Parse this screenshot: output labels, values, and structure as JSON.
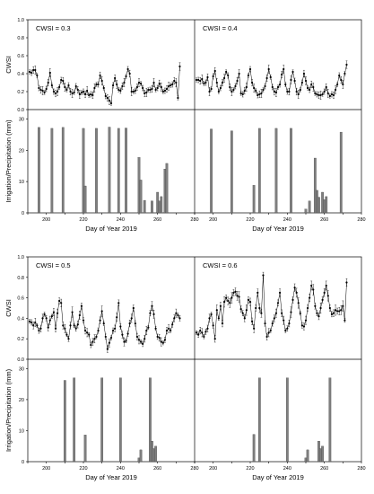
{
  "chart_data": [
    {
      "type": "line",
      "panel_label": "CWSI = 0.3",
      "ylabel": "CWSI",
      "ylim": [
        0,
        1.0
      ],
      "yticks": [
        0,
        0.2,
        0.4,
        0.6,
        0.8,
        1.0
      ],
      "xlim": [
        190,
        280
      ],
      "series": [
        {
          "x": [
            191,
            192,
            193,
            194,
            195,
            196,
            197,
            198,
            199,
            200,
            201,
            202,
            203,
            204,
            205,
            206,
            207,
            208,
            209,
            210,
            211,
            212,
            213,
            214,
            215,
            216,
            217,
            218,
            219,
            220,
            221,
            222,
            223,
            224,
            225,
            226,
            227,
            228,
            229,
            230,
            231,
            232,
            233,
            234,
            235,
            236,
            237,
            238,
            239,
            240,
            241,
            242,
            243,
            244,
            245,
            246,
            247,
            248,
            249,
            250,
            251,
            252,
            253,
            254,
            255,
            256,
            257,
            258,
            259,
            260,
            261,
            262,
            263,
            264,
            265,
            266,
            267,
            268,
            269,
            270,
            271,
            272
          ],
          "y": [
            0.42,
            0.41,
            0.44,
            0.44,
            0.38,
            0.24,
            0.22,
            0.21,
            0.19,
            0.23,
            0.3,
            0.41,
            0.27,
            0.2,
            0.18,
            0.2,
            0.25,
            0.33,
            0.32,
            0.25,
            0.22,
            0.27,
            0.2,
            0.18,
            0.19,
            0.26,
            0.22,
            0.17,
            0.19,
            0.2,
            0.17,
            0.21,
            0.16,
            0.17,
            0.16,
            0.24,
            0.28,
            0.28,
            0.38,
            0.32,
            0.24,
            0.15,
            0.13,
            0.1,
            0.07,
            0.27,
            0.35,
            0.28,
            0.22,
            0.21,
            0.26,
            0.3,
            0.37,
            0.45,
            0.4,
            0.2,
            0.2,
            0.21,
            0.25,
            0.3,
            0.29,
            0.24,
            0.18,
            0.19,
            0.22,
            0.22,
            0.23,
            0.3,
            0.22,
            0.24,
            0.29,
            0.25,
            0.2,
            0.21,
            0.23,
            0.26,
            0.27,
            0.28,
            0.32,
            0.3,
            0.13,
            0.48
          ]
        }
      ]
    },
    {
      "type": "line",
      "panel_label": "CWSI = 0.4",
      "ylim": [
        0,
        1.0
      ],
      "xlim": [
        190,
        280
      ],
      "series": [
        {
          "x": [
            191,
            192,
            193,
            194,
            195,
            196,
            197,
            198,
            199,
            200,
            201,
            202,
            203,
            204,
            205,
            206,
            207,
            208,
            209,
            210,
            211,
            212,
            213,
            214,
            215,
            216,
            217,
            218,
            219,
            220,
            221,
            222,
            223,
            224,
            225,
            226,
            227,
            228,
            229,
            230,
            231,
            232,
            233,
            234,
            235,
            236,
            237,
            238,
            239,
            240,
            241,
            242,
            243,
            244,
            245,
            246,
            247,
            248,
            249,
            250,
            251,
            252,
            253,
            254,
            255,
            256,
            257,
            258,
            259,
            260,
            261,
            262,
            263,
            264,
            265,
            266,
            267,
            268,
            269,
            270,
            271,
            272
          ],
          "y": [
            0.33,
            0.33,
            0.32,
            0.34,
            0.29,
            0.3,
            0.36,
            0.2,
            0.23,
            0.37,
            0.43,
            0.3,
            0.2,
            0.24,
            0.3,
            0.35,
            0.42,
            0.38,
            0.25,
            0.2,
            0.22,
            0.26,
            0.32,
            0.4,
            0.18,
            0.17,
            0.21,
            0.25,
            0.38,
            0.45,
            0.3,
            0.24,
            0.21,
            0.16,
            0.17,
            0.18,
            0.22,
            0.26,
            0.35,
            0.45,
            0.36,
            0.25,
            0.2,
            0.19,
            0.25,
            0.28,
            0.39,
            0.45,
            0.28,
            0.2,
            0.2,
            0.33,
            0.42,
            0.32,
            0.2,
            0.17,
            0.22,
            0.3,
            0.4,
            0.32,
            0.24,
            0.22,
            0.28,
            0.25,
            0.18,
            0.17,
            0.16,
            0.16,
            0.17,
            0.2,
            0.25,
            0.18,
            0.15,
            0.17,
            0.16,
            0.22,
            0.28,
            0.38,
            0.33,
            0.28,
            0.4,
            0.5
          ]
        }
      ]
    },
    {
      "type": "line",
      "panel_label": "CWSI = 0.5",
      "ylabel": "CWSI",
      "ylim": [
        0,
        1.0
      ],
      "yticks": [
        0,
        0.2,
        0.4,
        0.6,
        0.8,
        1.0
      ],
      "xlim": [
        190,
        280
      ],
      "series": [
        {
          "x": [
            191,
            192,
            193,
            194,
            195,
            196,
            197,
            198,
            199,
            200,
            201,
            202,
            203,
            204,
            205,
            206,
            207,
            208,
            209,
            210,
            211,
            212,
            213,
            214,
            215,
            216,
            217,
            218,
            219,
            220,
            221,
            222,
            223,
            224,
            225,
            226,
            227,
            228,
            229,
            230,
            231,
            232,
            233,
            234,
            235,
            236,
            237,
            238,
            239,
            240,
            241,
            242,
            243,
            244,
            245,
            246,
            247,
            248,
            249,
            250,
            251,
            252,
            253,
            254,
            255,
            256,
            257,
            258,
            259,
            260,
            261,
            262,
            263,
            264,
            265,
            266,
            267,
            268,
            269,
            270,
            271,
            272
          ],
          "y": [
            0.37,
            0.36,
            0.33,
            0.36,
            0.33,
            0.28,
            0.3,
            0.4,
            0.44,
            0.4,
            0.31,
            0.38,
            0.42,
            0.46,
            0.3,
            0.45,
            0.57,
            0.55,
            0.33,
            0.3,
            0.24,
            0.2,
            0.33,
            0.46,
            0.33,
            0.3,
            0.34,
            0.43,
            0.52,
            0.38,
            0.28,
            0.26,
            0.24,
            0.14,
            0.17,
            0.2,
            0.22,
            0.28,
            0.38,
            0.47,
            0.35,
            0.22,
            0.1,
            0.16,
            0.21,
            0.28,
            0.3,
            0.41,
            0.55,
            0.32,
            0.24,
            0.17,
            0.18,
            0.25,
            0.35,
            0.4,
            0.5,
            0.35,
            0.22,
            0.19,
            0.17,
            0.15,
            0.2,
            0.28,
            0.31,
            0.45,
            0.52,
            0.44,
            0.3,
            0.22,
            0.21,
            0.17,
            0.16,
            0.19,
            0.28,
            0.3,
            0.28,
            0.34,
            0.4,
            0.45,
            0.43,
            0.4
          ]
        }
      ]
    },
    {
      "type": "line",
      "panel_label": "CWSI = 0.6",
      "ylim": [
        0,
        1.0
      ],
      "xlim": [
        190,
        280
      ],
      "series": [
        {
          "x": [
            191,
            192,
            193,
            194,
            195,
            196,
            197,
            198,
            199,
            200,
            201,
            202,
            203,
            204,
            205,
            206,
            207,
            208,
            209,
            210,
            211,
            212,
            213,
            214,
            215,
            216,
            217,
            218,
            219,
            220,
            221,
            222,
            223,
            224,
            225,
            226,
            227,
            228,
            229,
            230,
            231,
            232,
            233,
            234,
            235,
            236,
            237,
            238,
            239,
            240,
            241,
            242,
            243,
            244,
            245,
            246,
            247,
            248,
            249,
            250,
            251,
            252,
            253,
            254,
            255,
            256,
            257,
            258,
            259,
            260,
            261,
            262,
            263,
            264,
            265,
            266,
            267,
            268,
            269,
            270,
            271,
            272
          ],
          "y": [
            0.26,
            0.24,
            0.28,
            0.26,
            0.22,
            0.27,
            0.3,
            0.4,
            0.44,
            0.33,
            0.2,
            0.48,
            0.4,
            0.52,
            0.35,
            0.56,
            0.6,
            0.57,
            0.55,
            0.6,
            0.65,
            0.66,
            0.62,
            0.61,
            0.49,
            0.45,
            0.4,
            0.48,
            0.58,
            0.56,
            0.37,
            0.3,
            0.5,
            0.65,
            0.5,
            0.45,
            0.82,
            0.35,
            0.22,
            0.26,
            0.28,
            0.35,
            0.4,
            0.45,
            0.55,
            0.65,
            0.45,
            0.38,
            0.28,
            0.3,
            0.35,
            0.46,
            0.58,
            0.7,
            0.65,
            0.55,
            0.45,
            0.33,
            0.32,
            0.38,
            0.5,
            0.6,
            0.72,
            0.68,
            0.52,
            0.45,
            0.42,
            0.5,
            0.58,
            0.65,
            0.72,
            0.62,
            0.5,
            0.44,
            0.45,
            0.48,
            0.47,
            0.47,
            0.48,
            0.52,
            0.38,
            0.75
          ]
        }
      ]
    },
    {
      "type": "bar",
      "ylabel": "Irrigation/Precipitation (mm)",
      "ylim": [
        0,
        33
      ],
      "yticks": [
        0,
        10,
        20,
        30
      ],
      "xlim": [
        190,
        280
      ],
      "xticks": [
        200,
        220,
        240,
        260,
        280
      ],
      "xlabel": "Day of Year 2019",
      "x": [
        196,
        203,
        209,
        220,
        221,
        227,
        234,
        239,
        243,
        250,
        251,
        253,
        257,
        260,
        261,
        262,
        264,
        265
      ],
      "values": [
        27.3,
        27.0,
        27.3,
        27.0,
        8.6,
        27.0,
        27.4,
        27.0,
        27.1,
        17.7,
        10.5,
        4.0,
        3.8,
        6.6,
        3.8,
        5.2,
        14.0,
        15.8
      ]
    },
    {
      "type": "bar",
      "xlim": [
        190,
        280
      ],
      "xticks": [
        200,
        220,
        240,
        260,
        280
      ],
      "xlabel": "Day of Year 2019",
      "x": [
        199,
        210,
        222,
        225,
        234,
        242,
        250,
        252,
        255,
        256,
        257,
        259,
        260,
        261,
        269
      ],
      "values": [
        26.8,
        26.2,
        8.8,
        27.0,
        27.0,
        27.0,
        1.2,
        3.8,
        17.5,
        7.2,
        5.0,
        6.6,
        4.2,
        5.2,
        25.8
      ]
    },
    {
      "type": "bar",
      "ylabel": "Irrigation/Precipitation (mm)",
      "ylim": [
        0,
        33
      ],
      "yticks": [
        0,
        10,
        20,
        30
      ],
      "xlim": [
        190,
        280
      ],
      "xticks": [
        200,
        220,
        240,
        260,
        280
      ],
      "xlabel": "Day of Year 2019",
      "x": [
        210,
        215,
        221,
        230,
        240,
        250,
        251,
        256,
        257,
        258,
        259
      ],
      "values": [
        26.2,
        27.0,
        8.6,
        27.0,
        27.0,
        1.2,
        3.8,
        27.0,
        6.6,
        4.2,
        5.0
      ]
    },
    {
      "type": "bar",
      "xlim": [
        190,
        280
      ],
      "xticks": [
        200,
        220,
        240,
        260,
        280
      ],
      "xlabel": "Day of Year 2019",
      "x": [
        222,
        225,
        240,
        250,
        251,
        257,
        258,
        259,
        263
      ],
      "values": [
        8.8,
        27.0,
        27.0,
        1.2,
        3.8,
        6.6,
        4.2,
        5.0,
        27.0
      ]
    }
  ]
}
